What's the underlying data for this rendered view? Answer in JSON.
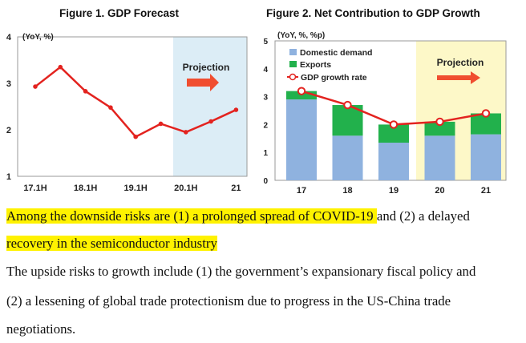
{
  "colors": {
    "line": "#e3231f",
    "projection_bg_1": "#dcedf6",
    "projection_bg_2": "#fdf8c8",
    "domestic": "#8fb2df",
    "exports": "#22b14c",
    "arrow": "#f04e30",
    "highlight": "#fff200"
  },
  "chart_data": [
    {
      "type": "line",
      "title": "Figure 1. GDP Forecast",
      "unit_label": "(YoY, %)",
      "tick_labels": [
        "17.1H",
        "18.1H",
        "19.1H",
        "20.1H",
        "21"
      ],
      "yticks": [
        1,
        2,
        3,
        4
      ],
      "ylim": [
        1,
        4
      ],
      "grid": false,
      "annotation": "Projection",
      "projection_shaded": true,
      "series": [
        {
          "x": [
            0,
            1,
            2,
            3,
            4,
            5,
            6,
            7,
            8
          ],
          "values": [
            2.93,
            3.35,
            2.83,
            2.48,
            1.85,
            2.13,
            1.95,
            2.18,
            2.43
          ]
        }
      ]
    },
    {
      "type": "bar",
      "title": "Figure 2. Net Contribution to GDP Growth",
      "unit_label": "(YoY, %, %p)",
      "categories": [
        "17",
        "18",
        "19",
        "20",
        "21"
      ],
      "ylim": [
        0,
        5
      ],
      "yticks": [
        0,
        1,
        2,
        3,
        4,
        5
      ],
      "stacked": true,
      "grid": false,
      "legend_position": "top-left",
      "annotation": "Projection",
      "projection_shaded": true,
      "series": [
        {
          "name": "Domestic demand",
          "values": [
            2.9,
            1.6,
            1.35,
            1.6,
            1.65
          ]
        },
        {
          "name": "Exports",
          "values": [
            0.3,
            1.1,
            0.65,
            0.5,
            0.75
          ]
        },
        {
          "name": "GDP growth rate",
          "type": "line",
          "values": [
            3.2,
            2.7,
            2.0,
            2.1,
            2.4
          ]
        }
      ]
    }
  ],
  "text": {
    "p1_line1_seg1": "Among the downside risks are (1) ",
    "p1_line1_seg2": "a prolonged spread of COVID-19 ",
    "p1_line1_seg3": "and (2) a delayed",
    "p1_line2": "recovery in the semiconductor industry",
    "p2_line1": "The upside risks to growth include (1) the government’s expansionary fiscal policy and",
    "p2_line2": "(2) a lessening of global trade protectionism due to progress in the US-China trade",
    "p2_line3": "negotiations."
  }
}
